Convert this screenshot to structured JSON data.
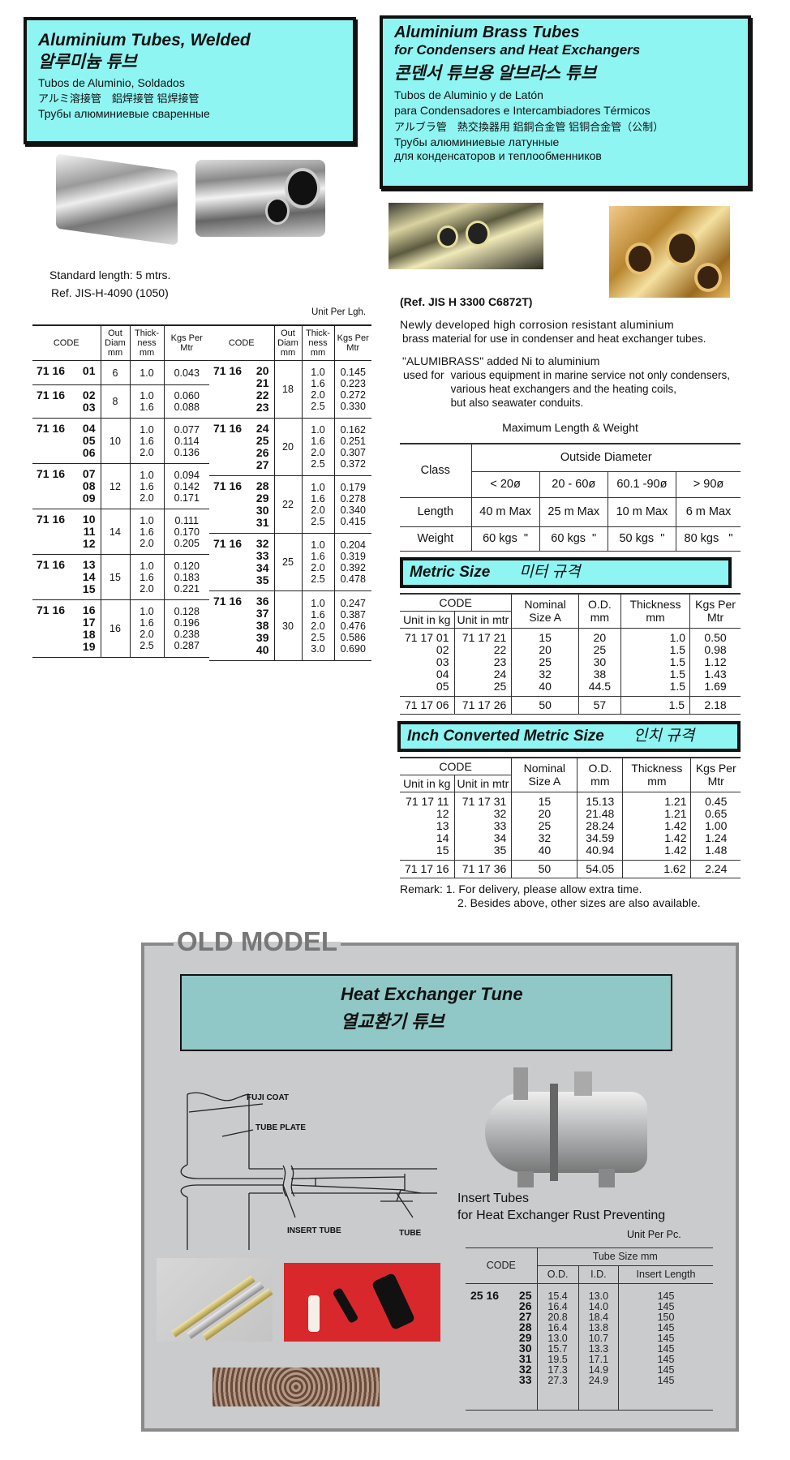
{
  "welded": {
    "title": "Aluminium Tubes, Welded",
    "korean": "알루미늄 튜브",
    "spanish": "Tubos de Aluminio, Soldados",
    "japanese_chinese": "アルミ溶接管　鋁焊接管 铝焊接管",
    "russian": "Трубы алюминиевые сваренные",
    "standard_length": "Standard length: 5 mtrs.",
    "ref": "Ref.  JIS-H-4090  (1050)",
    "unit": "Unit Per Lgh.",
    "headers": [
      "CODE",
      "Out Diam mm",
      "Thick-ness mm",
      "Kgs Per Mtr"
    ],
    "prefix": "71 16",
    "left_groups": [
      {
        "codes": [
          "01"
        ],
        "od": "6",
        "thk": [
          "1.0"
        ],
        "kgs": [
          "0.043"
        ]
      },
      {
        "codes": [
          "02",
          "03"
        ],
        "od": "8",
        "thk": [
          "1.0",
          "1.6"
        ],
        "kgs": [
          "0.060",
          "0.088"
        ]
      },
      {
        "codes": [
          "04",
          "05",
          "06"
        ],
        "od": "10",
        "thk": [
          "1.0",
          "1.6",
          "2.0"
        ],
        "kgs": [
          "0.077",
          "0.114",
          "0.136"
        ]
      },
      {
        "codes": [
          "07",
          "08",
          "09"
        ],
        "od": "12",
        "thk": [
          "1.0",
          "1.6",
          "2.0"
        ],
        "kgs": [
          "0.094",
          "0.142",
          "0.171"
        ]
      },
      {
        "codes": [
          "10",
          "11",
          "12"
        ],
        "od": "14",
        "thk": [
          "1.0",
          "1.6",
          "2.0"
        ],
        "kgs": [
          "0.111",
          "0.170",
          "0.205"
        ]
      },
      {
        "codes": [
          "13",
          "14",
          "15"
        ],
        "od": "15",
        "thk": [
          "1.0",
          "1.6",
          "2.0"
        ],
        "kgs": [
          "0.120",
          "0.183",
          "0.221"
        ]
      },
      {
        "codes": [
          "16",
          "17",
          "18",
          "19"
        ],
        "od": "16",
        "thk": [
          "1.0",
          "1.6",
          "2.0",
          "2.5"
        ],
        "kgs": [
          "0.128",
          "0.196",
          "0.238",
          "0.287"
        ]
      }
    ],
    "right_groups": [
      {
        "codes": [
          "20",
          "21",
          "22",
          "23"
        ],
        "od": "18",
        "thk": [
          "1.0",
          "1.6",
          "2.0",
          "2.5"
        ],
        "kgs": [
          "0.145",
          "0.223",
          "0.272",
          "0.330"
        ]
      },
      {
        "codes": [
          "24",
          "25",
          "26",
          "27"
        ],
        "od": "20",
        "thk": [
          "1.0",
          "1.6",
          "2.0",
          "2.5"
        ],
        "kgs": [
          "0.162",
          "0.251",
          "0.307",
          "0.372"
        ]
      },
      {
        "codes": [
          "28",
          "29",
          "30",
          "31"
        ],
        "od": "22",
        "thk": [
          "1.0",
          "1.6",
          "2.0",
          "2.5"
        ],
        "kgs": [
          "0.179",
          "0.278",
          "0.340",
          "0.415"
        ]
      },
      {
        "codes": [
          "32",
          "33",
          "34",
          "35"
        ],
        "od": "25",
        "thk": [
          "1.0",
          "1.6",
          "2.0",
          "2.5"
        ],
        "kgs": [
          "0.204",
          "0.319",
          "0.392",
          "0.478"
        ]
      },
      {
        "codes": [
          "36",
          "37",
          "38",
          "39",
          "40"
        ],
        "od": "30",
        "thk": [
          "1.0",
          "1.6",
          "2.0",
          "2.5",
          "3.0"
        ],
        "kgs": [
          "0.247",
          "0.387",
          "0.476",
          "0.586",
          "0.690"
        ]
      }
    ]
  },
  "brass": {
    "title": "Aluminium Brass Tubes",
    "subtitle": "for Condensers and Heat Exchangers",
    "korean": "콘덴서 튜브용 알브라스 튜브",
    "spanish1": "Tubos de Aluminio y de Latón",
    "spanish2": "para Condensadores e Intercambiadores Térmicos",
    "japanese_chinese": "アルブラ管　熱交換器用 鋁銅合金管  铝铜合金管（公制）",
    "russian1": "Трубы алюминиевые латунные",
    "russian2": "для конденсаторов и теплообменников",
    "ref": "(Ref. JIS H 3300 C6872T)",
    "para1_line1": "Newly developed high corrosion  resistant  aluminium",
    "para1_line2": "brass material for use in condenser  and heat exchanger tubes.",
    "para2_line1": "\"ALUMIBRASS\" added Ni to aluminium",
    "para2_used": "used for",
    "para2_line2": "various equipment in marine service not only condensers,",
    "para2_line3": "various heat exchangers and the heating coils,",
    "para2_line4": "but also seawater conduits.",
    "max_title": "Maximum Length & Weight",
    "max_table": {
      "class": "Class",
      "outside_diameter": "Outside Diameter",
      "ranges": [
        "< 20ø",
        "20 - 60ø",
        "60.1 -90ø",
        "> 90ø"
      ],
      "length_label": "Length",
      "lengths": [
        "40 m Max",
        "25 m Max",
        "10 m Max",
        "6 m Max"
      ],
      "weight_label": "Weight",
      "weights": [
        "60 kgs  \"",
        "60 kgs  \"",
        "50 kgs  \"",
        "80 kgs   \""
      ]
    },
    "headers": {
      "code": "CODE",
      "unit_kg": "Unit in kg",
      "unit_mtr": "Unit in mtr",
      "nominal": "Nominal Size A",
      "od": "O.D. mm",
      "thickness": "Thickness mm",
      "kgs": "Kgs Per Mtr"
    },
    "metric": {
      "title": "Metric Size",
      "korean": "미터 규격",
      "rows": [
        {
          "kg": "71 17 01",
          "mtr": "71 17 21",
          "nom": "15",
          "od": "20",
          "thk": "1.0",
          "kgs": "0.50"
        },
        {
          "kg": "02",
          "mtr": "22",
          "nom": "20",
          "od": "25",
          "thk": "1.5",
          "kgs": "0.98"
        },
        {
          "kg": "03",
          "mtr": "23",
          "nom": "25",
          "od": "30",
          "thk": "1.5",
          "kgs": "1.12"
        },
        {
          "kg": "04",
          "mtr": "24",
          "nom": "32",
          "od": "38",
          "thk": "1.5",
          "kgs": "1.43"
        },
        {
          "kg": "05",
          "mtr": "25",
          "nom": "40",
          "od": "44.5",
          "thk": "1.5",
          "kgs": "1.69"
        }
      ],
      "last": {
        "kg": "71 17 06",
        "mtr": "71 17 26",
        "nom": "50",
        "od": "57",
        "thk": "1.5",
        "kgs": "2.18"
      }
    },
    "inch": {
      "title": "Inch Converted Metric Size",
      "korean": "인치 규격",
      "rows": [
        {
          "kg": "71 17 11",
          "mtr": "71 17 31",
          "nom": "15",
          "od": "15.13",
          "thk": "1.21",
          "kgs": "0.45"
        },
        {
          "kg": "12",
          "mtr": "32",
          "nom": "20",
          "od": "21.48",
          "thk": "1.21",
          "kgs": "0.65"
        },
        {
          "kg": "13",
          "mtr": "33",
          "nom": "25",
          "od": "28.24",
          "thk": "1.42",
          "kgs": "1.00"
        },
        {
          "kg": "14",
          "mtr": "34",
          "nom": "32",
          "od": "34.59",
          "thk": "1.42",
          "kgs": "1.24"
        },
        {
          "kg": "15",
          "mtr": "35",
          "nom": "40",
          "od": "40.94",
          "thk": "1.42",
          "kgs": "1.48"
        }
      ],
      "last": {
        "kg": "71 17 16",
        "mtr": "71 17 36",
        "nom": "50",
        "od": "54.05",
        "thk": "1.62",
        "kgs": "2.24"
      }
    },
    "remark1": "Remark: 1. For delivery, please allow extra time.",
    "remark2": "2. Besides above, other sizes are also available."
  },
  "old_model": {
    "label": "OLD MODEL",
    "title": "Heat Exchanger Tune",
    "korean": "열교환기 튜브",
    "diagram_labels": {
      "fuji_coat": "FUJI COAT",
      "tube_plate": "TUBE PLATE",
      "insert_tube": "INSERT TUBE",
      "tube": "TUBE"
    },
    "insert_title": "Insert Tubes",
    "insert_subtitle": "for Heat Exchanger Rust Preventing",
    "unit": "Unit Per Pc.",
    "headers": {
      "code": "CODE",
      "tube_size": "Tube Size mm",
      "od": "O.D.",
      "id": "I.D.",
      "length": "Insert Length"
    },
    "prefix": "25 16",
    "rows": [
      {
        "code": "25",
        "od": "15.4",
        "id": "13.0",
        "len": "145"
      },
      {
        "code": "26",
        "od": "16.4",
        "id": "14.0",
        "len": "145"
      },
      {
        "code": "27",
        "od": "20.8",
        "id": "18.4",
        "len": "150"
      },
      {
        "code": "28",
        "od": "16.4",
        "id": "13.8",
        "len": "145"
      },
      {
        "code": "29",
        "od": "13.0",
        "id": "10.7",
        "len": "145"
      },
      {
        "code": "30",
        "od": "15.7",
        "id": "13.3",
        "len": "145"
      },
      {
        "code": "31",
        "od": "19.5",
        "id": "17.1",
        "len": "145"
      },
      {
        "code": "32",
        "od": "17.3",
        "id": "14.9",
        "len": "145"
      },
      {
        "code": "33",
        "od": "27.3",
        "id": "24.9",
        "len": "145"
      }
    ]
  },
  "colors": {
    "banner_cyan": "#8ff5f3",
    "old_model_bg": "#c9cbcd",
    "old_banner": "#8fc8c6"
  }
}
